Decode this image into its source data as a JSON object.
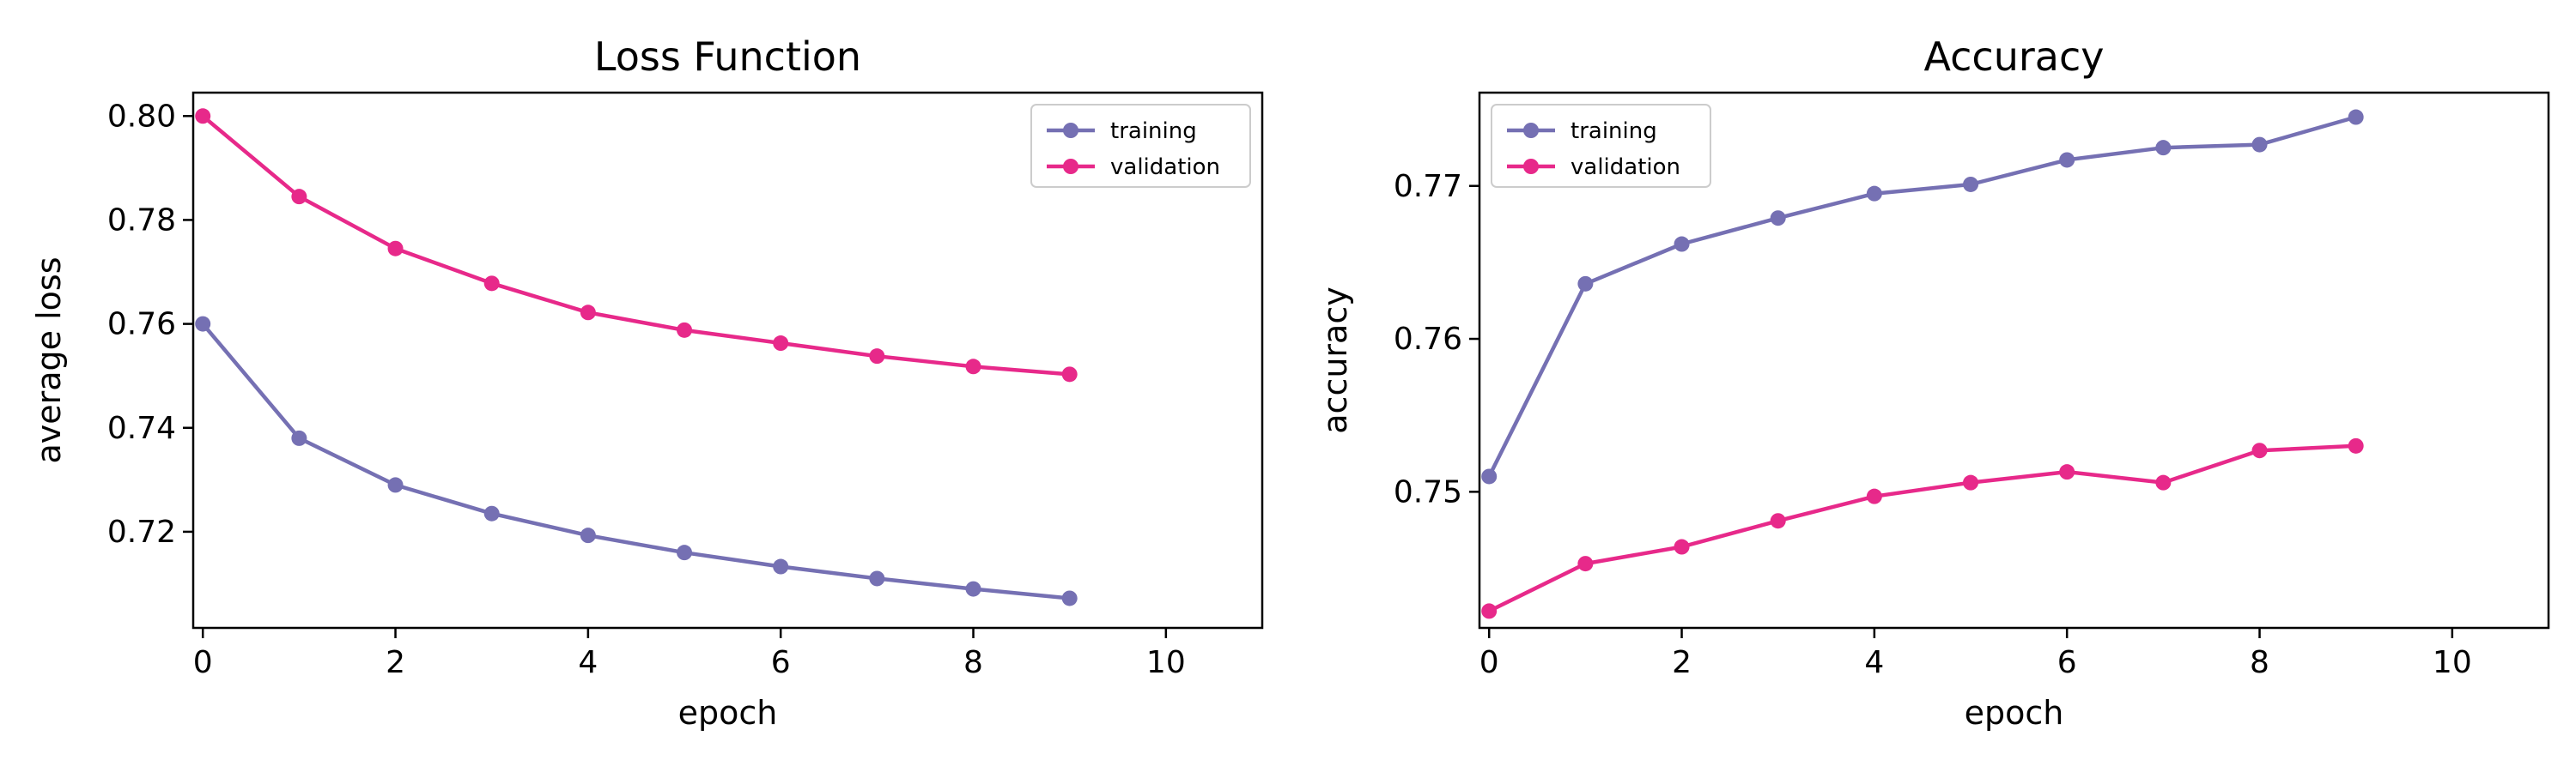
{
  "chart_data": [
    {
      "type": "line",
      "title": "Loss Function",
      "xlabel": "epoch",
      "ylabel": "average loss",
      "xlim": [
        -0.1,
        11
      ],
      "ylim": [
        0.7015,
        0.8045
      ],
      "xticks": [
        0,
        2,
        4,
        6,
        8,
        10
      ],
      "xtick_labels": [
        "0",
        "2",
        "4",
        "6",
        "8",
        "10"
      ],
      "yticks": [
        0.72,
        0.74,
        0.76,
        0.78,
        0.8
      ],
      "ytick_labels": [
        "0.72",
        "0.74",
        "0.76",
        "0.78",
        "0.80"
      ],
      "legend_position": "top-right",
      "grid": false,
      "x": [
        0,
        1,
        2,
        3,
        4,
        5,
        6,
        7,
        8,
        9
      ],
      "series": [
        {
          "name": "training",
          "color": "#7570b3",
          "values": [
            0.76,
            0.738,
            0.729,
            0.7235,
            0.7193,
            0.716,
            0.7133,
            0.711,
            0.709,
            0.7072
          ]
        },
        {
          "name": "validation",
          "color": "#e7298a",
          "values": [
            0.8,
            0.7845,
            0.7745,
            0.7678,
            0.7622,
            0.7588,
            0.7563,
            0.7538,
            0.7518,
            0.7503
          ]
        }
      ]
    },
    {
      "type": "line",
      "title": "Accuracy",
      "xlabel": "epoch",
      "ylabel": "accuracy",
      "xlim": [
        -0.1,
        11
      ],
      "ylim": [
        0.7411,
        0.7761
      ],
      "xticks": [
        0,
        2,
        4,
        6,
        8,
        10
      ],
      "xtick_labels": [
        "0",
        "2",
        "4",
        "6",
        "8",
        "10"
      ],
      "yticks": [
        0.75,
        0.76,
        0.77
      ],
      "ytick_labels": [
        "0.75",
        "0.76",
        "0.77"
      ],
      "legend_position": "top-left",
      "grid": false,
      "x": [
        0,
        1,
        2,
        3,
        4,
        5,
        6,
        7,
        8,
        9
      ],
      "series": [
        {
          "name": "training",
          "color": "#7570b3",
          "values": [
            0.751,
            0.7636,
            0.7662,
            0.7679,
            0.7695,
            0.7701,
            0.7717,
            0.7725,
            0.7727,
            0.7745
          ]
        },
        {
          "name": "validation",
          "color": "#e7298a",
          "values": [
            0.7422,
            0.7453,
            0.7464,
            0.7481,
            0.7497,
            0.7506,
            0.7513,
            0.7506,
            0.7527,
            0.753
          ]
        }
      ]
    }
  ]
}
